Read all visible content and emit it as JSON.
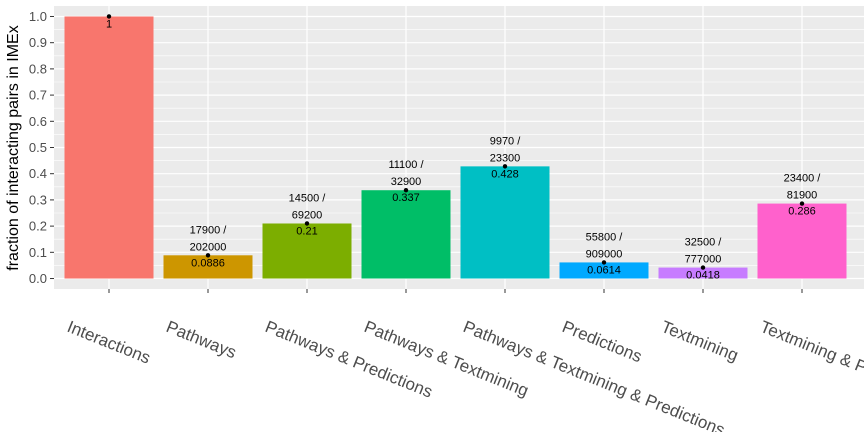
{
  "chart_data": {
    "type": "bar",
    "xlabel": "",
    "ylabel": "fraction of interacting pairs in IMEx",
    "ylim": [
      -0.04,
      1.04
    ],
    "yticks": [
      "0.0",
      "0.1",
      "0.2",
      "0.3",
      "0.4",
      "0.5",
      "0.6",
      "0.7",
      "0.8",
      "0.9",
      "1.0"
    ],
    "grid": true,
    "legend": "none",
    "categories": [
      "Interactions",
      "Pathways",
      "Pathways & Predictions",
      "Pathways & Textmining",
      "Pathways & Textmining & Predictions",
      "Predictions",
      "Textmining",
      "Textmining & Predictions"
    ],
    "values": [
      1,
      0.0886,
      0.21,
      0.337,
      0.428,
      0.0614,
      0.0418,
      0.286
    ],
    "value_labels": [
      "1",
      "0.0886",
      "0.21",
      "0.337",
      "0.428",
      "0.0614",
      "0.0418",
      "0.286"
    ],
    "count_labels": [
      null,
      [
        "17900 /",
        "202000"
      ],
      [
        "14500 /",
        "69200"
      ],
      [
        "11100 /",
        "32900"
      ],
      [
        "9970 /",
        "23300"
      ],
      [
        "55800 /",
        "909000"
      ],
      [
        "32500 /",
        "777000"
      ],
      [
        "23400 /",
        "81900"
      ]
    ],
    "colors": [
      "#F8766D",
      "#CD9600",
      "#7CAE00",
      "#00BE67",
      "#00BFC4",
      "#00A9FF",
      "#C77CFF",
      "#FF61CC"
    ],
    "panel_background": "#EBEBEB",
    "grid_color": "#FFFFFF"
  }
}
